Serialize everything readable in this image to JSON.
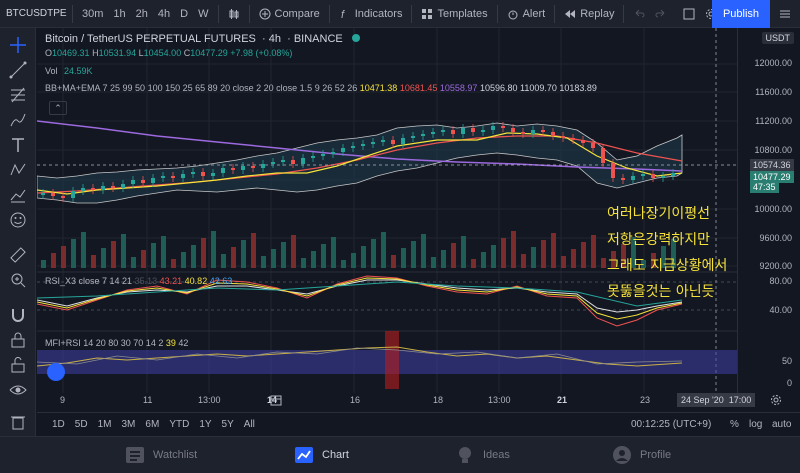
{
  "topbar": {
    "symbol": "BTCUSDTPE",
    "intervals": [
      "30m",
      "1h",
      "2h",
      "4h",
      "D",
      "W"
    ],
    "compare": "Compare",
    "indicators": "Indicators",
    "templates": "Templates",
    "alert": "Alert",
    "replay": "Replay",
    "publish": "Publish"
  },
  "header": {
    "title": "Bitcoin / TetherUS PERPETUAL FUTURES",
    "interval": "4h",
    "exchange": "BINANCE",
    "ohlc": {
      "o_label": "O",
      "o": "10469.31",
      "h_label": "H",
      "h": "10531.94",
      "l_label": "L",
      "l": "10454.00",
      "c_label": "C",
      "c": "10477.29",
      "change": "+7.98 (+0.08%)"
    },
    "vol_label": "Vol",
    "vol": "24.59K",
    "indicator": {
      "name": "BB+MA+EMA 7 25 99 50 100 150 25 65 89 20 close 2 20 close 1.5 9 26 52 26",
      "v1": "10471.38",
      "v2": "10681.45",
      "v3": "10558.97",
      "v4": "10596.80",
      "v5": "11009.70",
      "v6": "10183.89"
    }
  },
  "rsi": {
    "name": "RSI_X3 close 7 14 21",
    "v0": "35.13",
    "v1": "43.21",
    "v2": "40.82",
    "v3": "42.63",
    "levels": [
      "80.00",
      "40.00"
    ]
  },
  "mfi": {
    "name": "MFI+RSI 14 20 80 30 70 14 2",
    "v1": "39",
    "v2": "42",
    "levels": [
      "50",
      "0"
    ]
  },
  "price_axis": {
    "currency": "USDT",
    "labels": [
      "12000.00",
      "11600.00",
      "11200.00",
      "10800.00",
      "10000.00",
      "9600.00",
      "9200.00"
    ],
    "current": "10574.36",
    "last": "10477.29",
    "countdown": "47:35"
  },
  "time_axis": {
    "labels": [
      "9",
      "11",
      "13:00",
      "14",
      "16",
      "18",
      "13:00",
      "21",
      "23"
    ],
    "cursor": "24 Sep '20",
    "cursor_time": "17:00"
  },
  "bottom": {
    "ranges": [
      "1D",
      "5D",
      "1M",
      "3M",
      "6M",
      "YTD",
      "1Y",
      "5Y",
      "All"
    ],
    "clock": "00:12:25 (UTC+9)",
    "percent": "%",
    "log": "log",
    "auto": "auto"
  },
  "nav": {
    "watchlist": "Watchlist",
    "chart": "Chart",
    "ideas": "Ideas",
    "profile": "Profile"
  },
  "annotation": {
    "line1": "여러나장기이평선",
    "line2": "저항은강력하지만",
    "line3": "그래도 지금상황에서",
    "line4": "못뚫을것는 아닌듯"
  },
  "colors": {
    "up": "#26a69a",
    "down": "#ef5350",
    "accent": "#2962ff",
    "yellow": "#f5e23a",
    "purple": "#9c6ade"
  }
}
